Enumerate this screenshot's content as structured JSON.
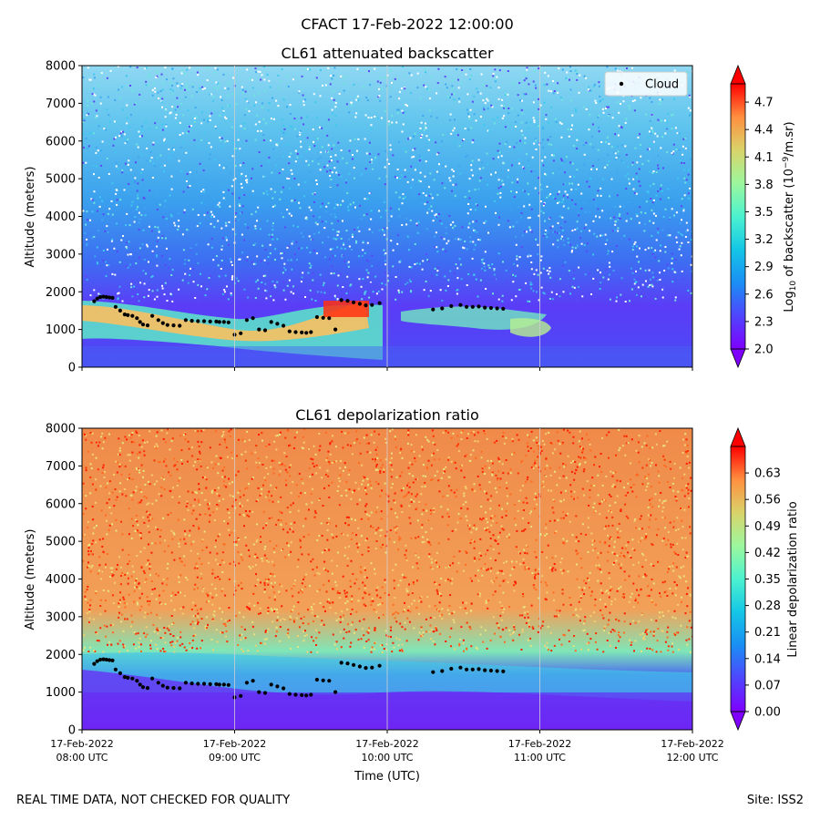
{
  "figure": {
    "suptitle": "CFACT 17-Feb-2022 12:00:00",
    "footer_left": "REAL TIME DATA, NOT CHECKED FOR QUALITY",
    "footer_right": "Site: ISS2",
    "xlabel": "Time (UTC)"
  },
  "chart_data": [
    {
      "type": "heatmap",
      "title": "CL61 attenuated backscatter",
      "xlabel": "Time (UTC)",
      "ylabel": "Altitude (meters)",
      "ylim": [
        0,
        8000
      ],
      "yticks": [
        0,
        1000,
        2000,
        3000,
        4000,
        5000,
        6000,
        7000,
        8000
      ],
      "x_range_hours": [
        8,
        12
      ],
      "xticks": [
        {
          "hour": 8,
          "line1": "17-Feb-2022",
          "line2": "08:00 UTC"
        },
        {
          "hour": 9,
          "line1": "17-Feb-2022",
          "line2": "09:00 UTC"
        },
        {
          "hour": 10,
          "line1": "17-Feb-2022",
          "line2": "10:00 UTC"
        },
        {
          "hour": 11,
          "line1": "17-Feb-2022",
          "line2": "11:00 UTC"
        },
        {
          "hour": 12,
          "line1": "17-Feb-2022",
          "line2": "12:00 UTC"
        }
      ],
      "colorbar": {
        "label_prefix": "Log",
        "label_sub": "10",
        "label_mid": " of backscatter (10",
        "label_sup": "−9",
        "label_suffix": "/m.sr)",
        "range": [
          2.0,
          4.9
        ],
        "ticks": [
          "2.0",
          "2.3",
          "2.6",
          "2.9",
          "3.2",
          "3.5",
          "3.8",
          "4.1",
          "4.4",
          "4.7"
        ],
        "tick_values": [
          2.0,
          2.3,
          2.6,
          2.9,
          3.2,
          3.5,
          3.8,
          4.1,
          4.4,
          4.7
        ]
      },
      "legend": {
        "label": "Cloud",
        "location": "top-right"
      }
    },
    {
      "type": "heatmap",
      "title": "CL61 depolarization ratio",
      "xlabel": "Time (UTC)",
      "ylabel": "Altitude (meters)",
      "ylim": [
        0,
        8000
      ],
      "yticks": [
        0,
        1000,
        2000,
        3000,
        4000,
        5000,
        6000,
        7000,
        8000
      ],
      "x_range_hours": [
        8,
        12
      ],
      "colorbar": {
        "label": "Linear depolarization ratio",
        "range": [
          0.0,
          0.7
        ],
        "ticks": [
          "0.00",
          "0.07",
          "0.14",
          "0.21",
          "0.28",
          "0.35",
          "0.42",
          "0.49",
          "0.56",
          "0.63"
        ],
        "tick_values": [
          0.0,
          0.07,
          0.14,
          0.21,
          0.28,
          0.35,
          0.42,
          0.49,
          0.56,
          0.63
        ]
      }
    }
  ],
  "cloud_base_series": {
    "name": "Cloud",
    "hours": [
      8.08,
      8.1,
      8.12,
      8.14,
      8.16,
      8.18,
      8.2,
      8.22,
      8.25,
      8.28,
      8.3,
      8.33,
      8.36,
      8.38,
      8.4,
      8.43,
      8.46,
      8.5,
      8.53,
      8.56,
      8.6,
      8.64,
      8.68,
      8.72,
      8.76,
      8.8,
      8.84,
      8.88,
      8.9,
      8.93,
      8.96,
      9.0,
      9.04,
      9.08,
      9.12,
      9.16,
      9.2,
      9.24,
      9.28,
      9.32,
      9.36,
      9.4,
      9.44,
      9.47,
      9.5,
      9.54,
      9.58,
      9.62,
      9.66,
      9.7,
      9.74,
      9.78,
      9.82,
      9.86,
      9.9,
      9.95,
      10.3,
      10.36,
      10.42,
      10.48,
      10.52,
      10.56,
      10.6,
      10.64,
      10.68,
      10.72,
      10.76
    ],
    "altitudes": [
      1750,
      1820,
      1860,
      1870,
      1860,
      1850,
      1840,
      1600,
      1500,
      1400,
      1380,
      1360,
      1300,
      1200,
      1130,
      1110,
      1360,
      1250,
      1170,
      1120,
      1110,
      1100,
      1250,
      1230,
      1220,
      1220,
      1210,
      1210,
      1200,
      1200,
      1190,
      860,
      900,
      1250,
      1300,
      1000,
      980,
      1200,
      1150,
      1100,
      950,
      930,
      920,
      910,
      930,
      1330,
      1310,
      1300,
      1000,
      1780,
      1760,
      1720,
      1680,
      1640,
      1650,
      1700,
      1530,
      1560,
      1620,
      1650,
      1600,
      1600,
      1610,
      1580,
      1570,
      1560,
      1550
    ]
  }
}
